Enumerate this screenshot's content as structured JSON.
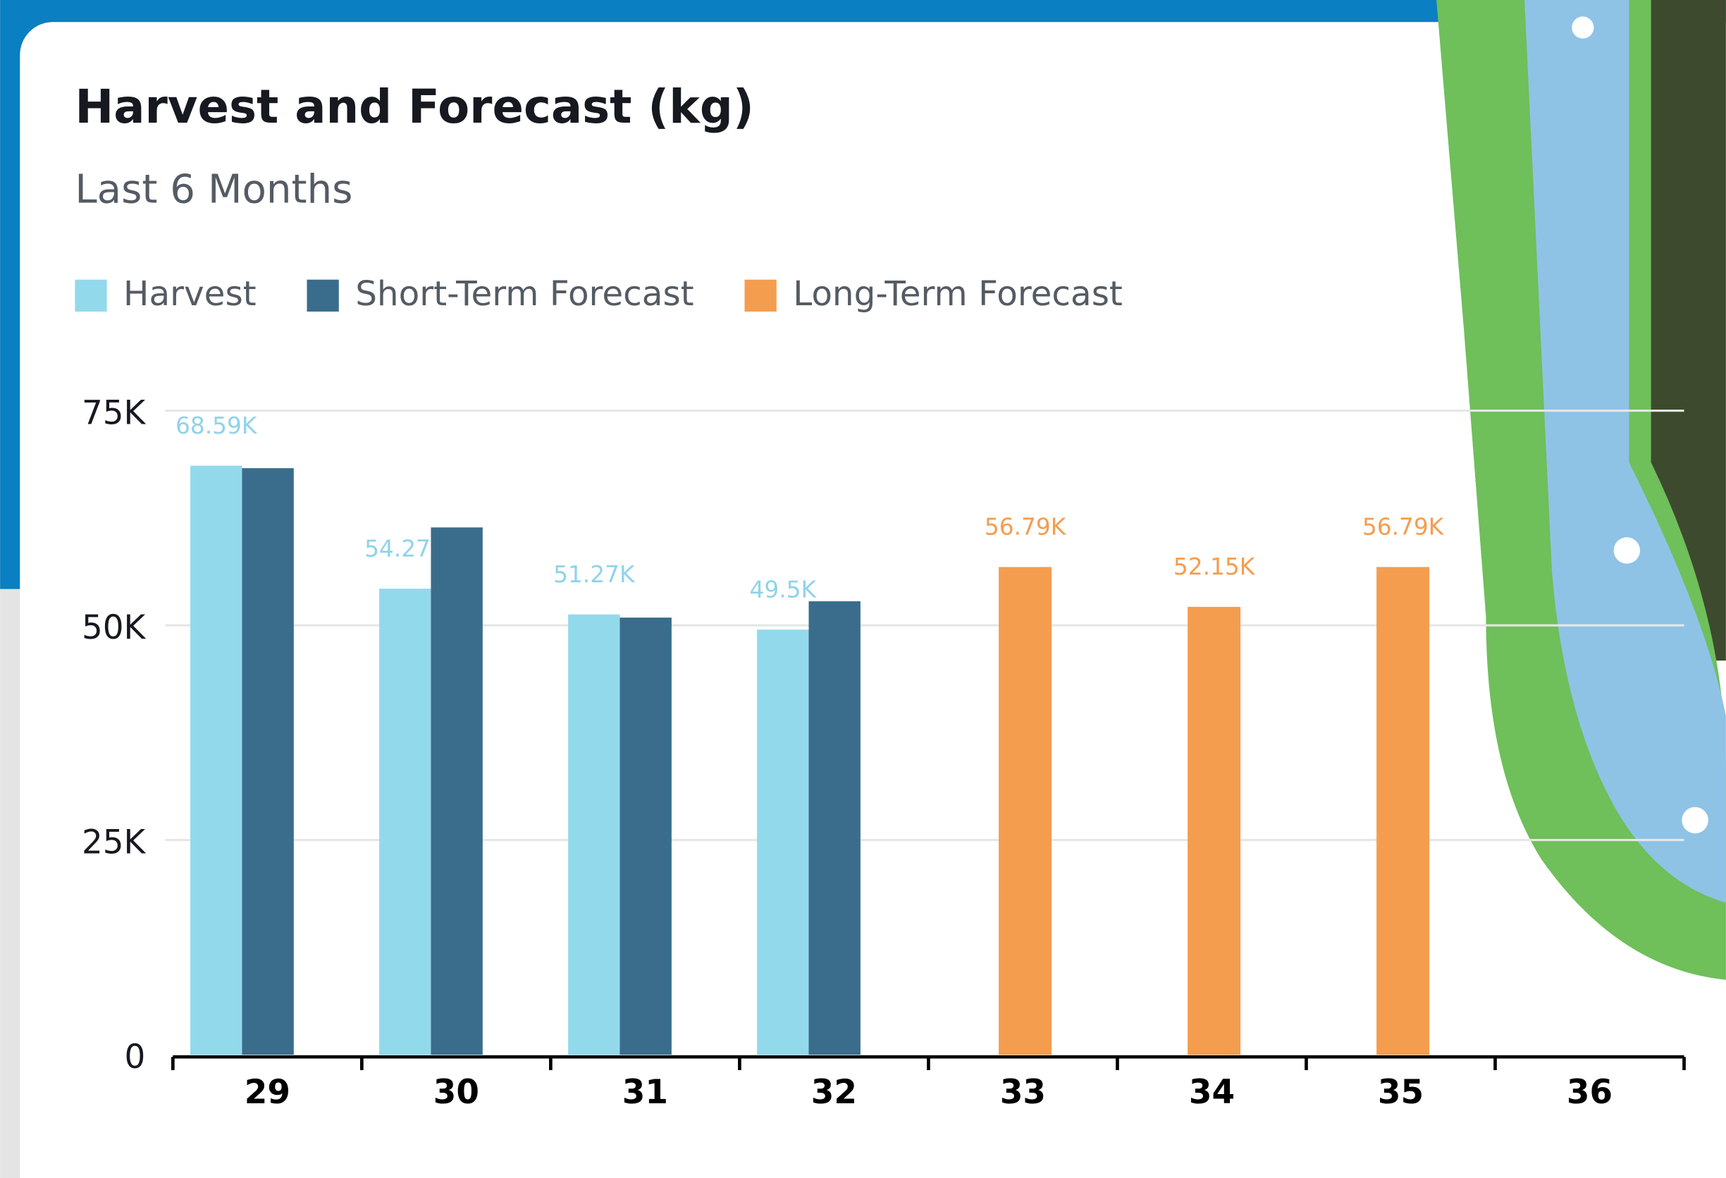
{
  "chart_data": {
    "type": "bar",
    "title": "Harvest and Forecast (kg)",
    "subtitle": "Last  6 Months",
    "categories": [
      "29",
      "30",
      "31",
      "32",
      "33",
      "34",
      "35",
      "36"
    ],
    "series": [
      {
        "name": "Harvest",
        "color": "#93d9ec",
        "values": [
          68590,
          54270,
          51270,
          49500,
          null,
          null,
          null,
          null
        ],
        "value_labels": [
          "68.59K",
          "54.27K",
          "51.27K",
          "49.5K",
          null,
          null,
          null,
          null
        ]
      },
      {
        "name": "Short-Term Forecast",
        "color": "#3a6d8c",
        "values": [
          68300,
          61400,
          50900,
          52800,
          null,
          null,
          null,
          null
        ]
      },
      {
        "name": "Long-Term Forecast",
        "color": "#f49d4f",
        "values": [
          null,
          null,
          null,
          null,
          56790,
          52150,
          56790,
          null
        ],
        "value_labels": [
          null,
          null,
          null,
          null,
          "56.79K",
          "52.15K",
          "56.79K",
          null
        ]
      }
    ],
    "ylim": [
      0,
      75000
    ],
    "yticks": [
      0,
      {
        "value": 25000,
        "label": "25K"
      },
      {
        "value": 50000,
        "label": "50K"
      },
      {
        "value": 75000,
        "label": "75K"
      }
    ],
    "grid": true
  }
}
